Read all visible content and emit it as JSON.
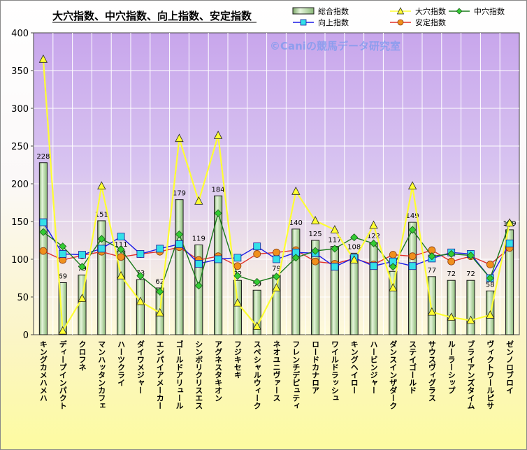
{
  "chart_data": {
    "type": "bar",
    "title": "大穴指数、中穴指数、向上指数、安定指数",
    "watermark": "©Caniの競馬データ研究室",
    "ylim": [
      0,
      400
    ],
    "yticks": [
      "0",
      "50",
      "100",
      "150",
      "200",
      "250",
      "300",
      "350",
      "400"
    ],
    "grid": true,
    "legend_position": "top-right",
    "categories": [
      "キングカメハメハ",
      "ディープインパクト",
      "クロフネ",
      "マンハッタンカフェ",
      "ハーツクライ",
      "ダイワメジャー",
      "エンパイアメーカー",
      "ゴールドアリュール",
      "シンボリクリスエス",
      "アグネスタキオン",
      "フジキセキ",
      "スペシャルウィーク",
      "ネオユニヴァース",
      "フレンチデピュティ",
      "ロードカナロア",
      "ワイルドラッシュ",
      "キングヘイロー",
      "ハービンジャー",
      "ダンスインザダーク",
      "ステイゴールド",
      "サウスヴィグラス",
      "ルーラーシップ",
      "ブライアンズタイム",
      "ヴィクトワールピサ",
      "ゼンノロブロイ"
    ],
    "series": [
      {
        "name": "総合指数",
        "type": "bar",
        "color": "#c6e8b4",
        "values": [
          228,
          69,
          79,
          151,
          111,
          73,
          62,
          179,
          119,
          184,
          72,
          59,
          79,
          140,
          125,
          117,
          108,
          122,
          84,
          149,
          77,
          72,
          72,
          58,
          139
        ],
        "labels": [
          "228",
          "69",
          "79",
          "151",
          "111",
          "73",
          "62",
          "179",
          "119",
          "184",
          "72",
          "59",
          "79",
          "140",
          "125",
          "117",
          "108",
          "122",
          "84",
          "149",
          "77",
          "72",
          "72",
          "58",
          "139"
        ]
      },
      {
        "name": "大穴指数",
        "type": "line",
        "color": "#ffff33",
        "marker": "triangle",
        "values": [
          365,
          5,
          48,
          197,
          78,
          44,
          29,
          260,
          177,
          264,
          42,
          11,
          62,
          190,
          151,
          139,
          99,
          145,
          62,
          197,
          30,
          23,
          19,
          26,
          148
        ]
      },
      {
        "name": "中穴指数",
        "type": "line",
        "color": "#1a7a1a",
        "marker": "diamond",
        "values": [
          136,
          117,
          90,
          127,
          113,
          78,
          57,
          133,
          65,
          161,
          78,
          70,
          77,
          102,
          111,
          114,
          129,
          121,
          90,
          139,
          104,
          107,
          105,
          75,
          148
        ]
      },
      {
        "name": "向上指数",
        "type": "line",
        "color": "#1a1ae6",
        "marker": "square",
        "values": [
          149,
          107,
          106,
          114,
          130,
          107,
          114,
          120,
          94,
          100,
          102,
          117,
          100,
          109,
          108,
          90,
          102,
          91,
          97,
          91,
          101,
          109,
          107,
          75,
          121
        ]
      },
      {
        "name": "安定指数",
        "type": "line",
        "color": "#e0302a",
        "marker": "circle",
        "values": [
          111,
          99,
          105,
          110,
          103,
          107,
          110,
          116,
          99,
          104,
          91,
          107,
          109,
          112,
          97,
          94,
          101,
          93,
          106,
          104,
          112,
          97,
          104,
          93,
          115
        ]
      }
    ]
  }
}
